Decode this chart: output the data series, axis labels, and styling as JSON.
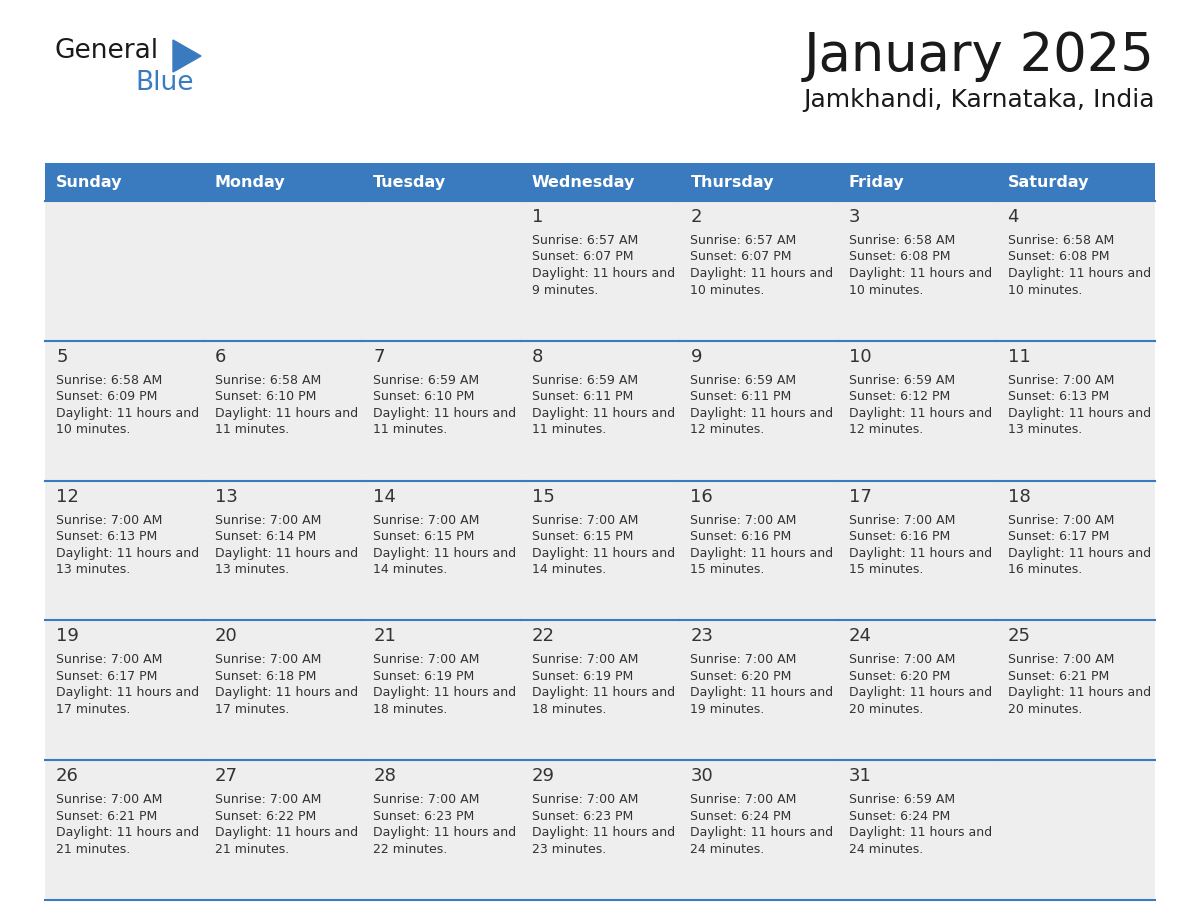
{
  "title": "January 2025",
  "subtitle": "Jamkhandi, Karnataka, India",
  "header_color": "#3a7bbf",
  "header_text_color": "#ffffff",
  "cell_bg_light": "#eeeeee",
  "cell_bg_white": "#ffffff",
  "text_color": "#333333",
  "line_color": "#3a7bbf",
  "days_of_week": [
    "Sunday",
    "Monday",
    "Tuesday",
    "Wednesday",
    "Thursday",
    "Friday",
    "Saturday"
  ],
  "weeks": [
    [
      {
        "day": "",
        "sunrise": "",
        "sunset": "",
        "daylight": ""
      },
      {
        "day": "",
        "sunrise": "",
        "sunset": "",
        "daylight": ""
      },
      {
        "day": "",
        "sunrise": "",
        "sunset": "",
        "daylight": ""
      },
      {
        "day": "1",
        "sunrise": "6:57 AM",
        "sunset": "6:07 PM",
        "daylight": "11 hours and 9 minutes."
      },
      {
        "day": "2",
        "sunrise": "6:57 AM",
        "sunset": "6:07 PM",
        "daylight": "11 hours and 10 minutes."
      },
      {
        "day": "3",
        "sunrise": "6:58 AM",
        "sunset": "6:08 PM",
        "daylight": "11 hours and 10 minutes."
      },
      {
        "day": "4",
        "sunrise": "6:58 AM",
        "sunset": "6:08 PM",
        "daylight": "11 hours and 10 minutes."
      }
    ],
    [
      {
        "day": "5",
        "sunrise": "6:58 AM",
        "sunset": "6:09 PM",
        "daylight": "11 hours and 10 minutes."
      },
      {
        "day": "6",
        "sunrise": "6:58 AM",
        "sunset": "6:10 PM",
        "daylight": "11 hours and 11 minutes."
      },
      {
        "day": "7",
        "sunrise": "6:59 AM",
        "sunset": "6:10 PM",
        "daylight": "11 hours and 11 minutes."
      },
      {
        "day": "8",
        "sunrise": "6:59 AM",
        "sunset": "6:11 PM",
        "daylight": "11 hours and 11 minutes."
      },
      {
        "day": "9",
        "sunrise": "6:59 AM",
        "sunset": "6:11 PM",
        "daylight": "11 hours and 12 minutes."
      },
      {
        "day": "10",
        "sunrise": "6:59 AM",
        "sunset": "6:12 PM",
        "daylight": "11 hours and 12 minutes."
      },
      {
        "day": "11",
        "sunrise": "7:00 AM",
        "sunset": "6:13 PM",
        "daylight": "11 hours and 13 minutes."
      }
    ],
    [
      {
        "day": "12",
        "sunrise": "7:00 AM",
        "sunset": "6:13 PM",
        "daylight": "11 hours and 13 minutes."
      },
      {
        "day": "13",
        "sunrise": "7:00 AM",
        "sunset": "6:14 PM",
        "daylight": "11 hours and 13 minutes."
      },
      {
        "day": "14",
        "sunrise": "7:00 AM",
        "sunset": "6:15 PM",
        "daylight": "11 hours and 14 minutes."
      },
      {
        "day": "15",
        "sunrise": "7:00 AM",
        "sunset": "6:15 PM",
        "daylight": "11 hours and 14 minutes."
      },
      {
        "day": "16",
        "sunrise": "7:00 AM",
        "sunset": "6:16 PM",
        "daylight": "11 hours and 15 minutes."
      },
      {
        "day": "17",
        "sunrise": "7:00 AM",
        "sunset": "6:16 PM",
        "daylight": "11 hours and 15 minutes."
      },
      {
        "day": "18",
        "sunrise": "7:00 AM",
        "sunset": "6:17 PM",
        "daylight": "11 hours and 16 minutes."
      }
    ],
    [
      {
        "day": "19",
        "sunrise": "7:00 AM",
        "sunset": "6:17 PM",
        "daylight": "11 hours and 17 minutes."
      },
      {
        "day": "20",
        "sunrise": "7:00 AM",
        "sunset": "6:18 PM",
        "daylight": "11 hours and 17 minutes."
      },
      {
        "day": "21",
        "sunrise": "7:00 AM",
        "sunset": "6:19 PM",
        "daylight": "11 hours and 18 minutes."
      },
      {
        "day": "22",
        "sunrise": "7:00 AM",
        "sunset": "6:19 PM",
        "daylight": "11 hours and 18 minutes."
      },
      {
        "day": "23",
        "sunrise": "7:00 AM",
        "sunset": "6:20 PM",
        "daylight": "11 hours and 19 minutes."
      },
      {
        "day": "24",
        "sunrise": "7:00 AM",
        "sunset": "6:20 PM",
        "daylight": "11 hours and 20 minutes."
      },
      {
        "day": "25",
        "sunrise": "7:00 AM",
        "sunset": "6:21 PM",
        "daylight": "11 hours and 20 minutes."
      }
    ],
    [
      {
        "day": "26",
        "sunrise": "7:00 AM",
        "sunset": "6:21 PM",
        "daylight": "11 hours and 21 minutes."
      },
      {
        "day": "27",
        "sunrise": "7:00 AM",
        "sunset": "6:22 PM",
        "daylight": "11 hours and 21 minutes."
      },
      {
        "day": "28",
        "sunrise": "7:00 AM",
        "sunset": "6:23 PM",
        "daylight": "11 hours and 22 minutes."
      },
      {
        "day": "29",
        "sunrise": "7:00 AM",
        "sunset": "6:23 PM",
        "daylight": "11 hours and 23 minutes."
      },
      {
        "day": "30",
        "sunrise": "7:00 AM",
        "sunset": "6:24 PM",
        "daylight": "11 hours and 24 minutes."
      },
      {
        "day": "31",
        "sunrise": "6:59 AM",
        "sunset": "6:24 PM",
        "daylight": "11 hours and 24 minutes."
      },
      {
        "day": "",
        "sunrise": "",
        "sunset": "",
        "daylight": ""
      }
    ]
  ]
}
